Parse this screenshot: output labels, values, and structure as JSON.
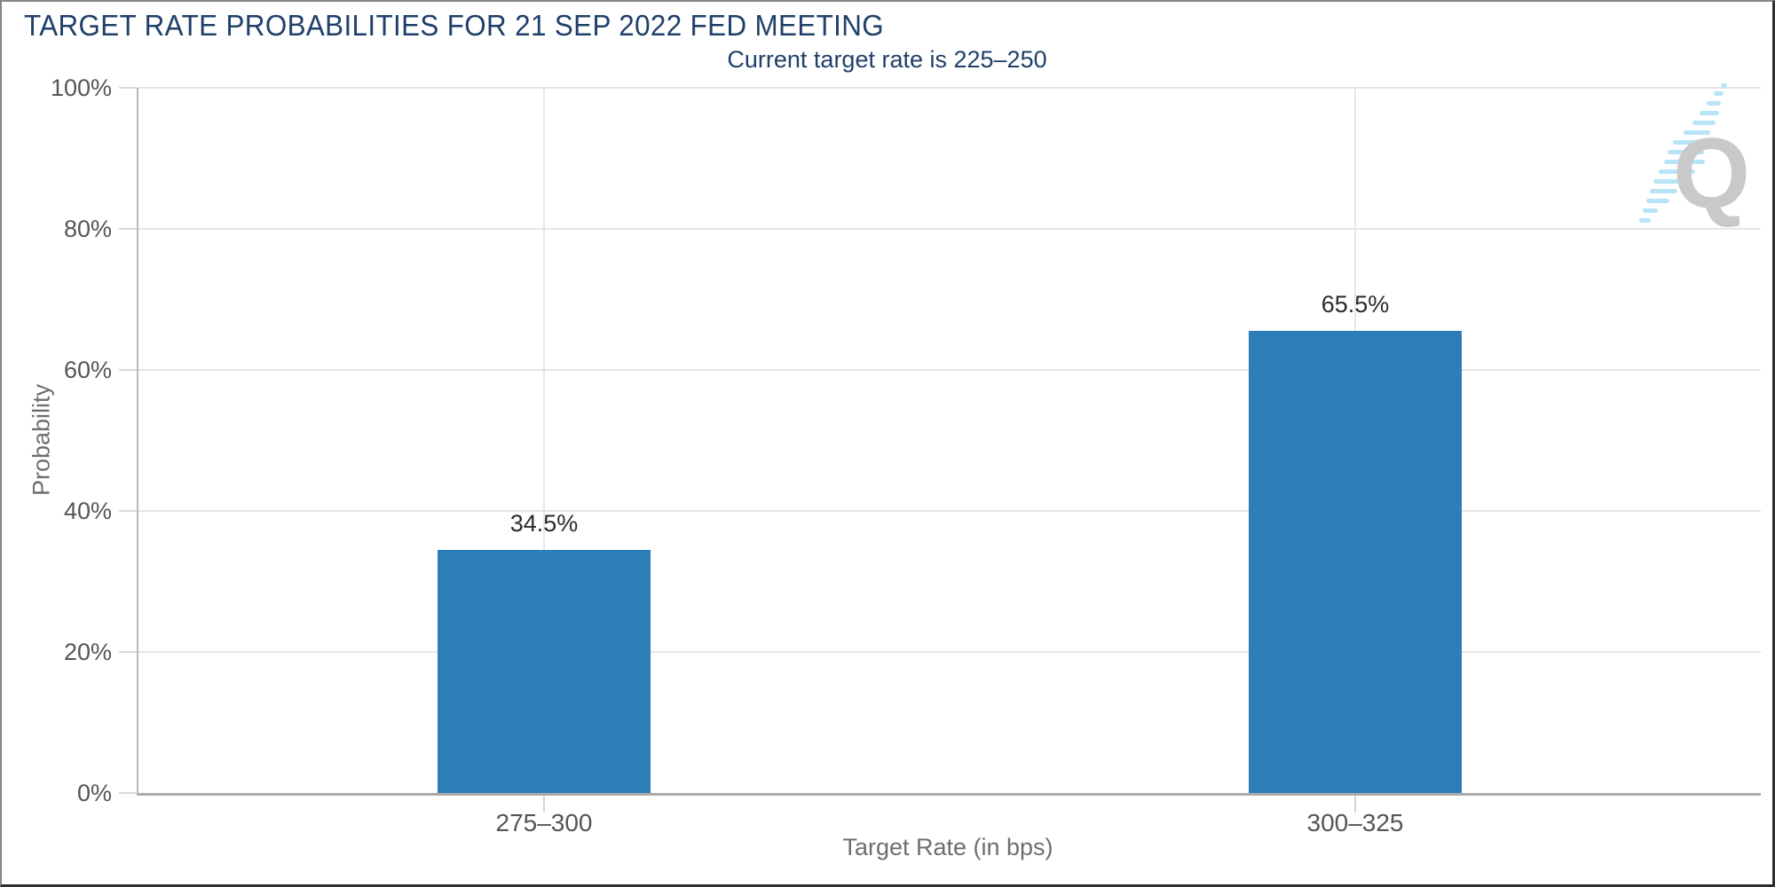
{
  "header": {
    "title": "TARGET RATE PROBABILITIES FOR 21 SEP 2022 FED MEETING",
    "subtitle": "Current target rate is 225–250"
  },
  "watermark": {
    "letter": "Q"
  },
  "chart_data": {
    "type": "bar",
    "title": "TARGET RATE PROBABILITIES FOR 21 SEP 2022 FED MEETING",
    "subtitle": "Current target rate is 225–250",
    "categories": [
      "275–300",
      "300–325"
    ],
    "values": [
      34.5,
      65.5
    ],
    "value_labels": [
      "34.5%",
      "65.5%"
    ],
    "xlabel": "Target Rate (in bps)",
    "ylabel": "Probability",
    "ylim": [
      0,
      100
    ],
    "yticks": [
      0,
      20,
      40,
      60,
      80,
      100
    ],
    "ytick_labels": [
      "0%",
      "20%",
      "40%",
      "60%",
      "80%",
      "100%"
    ],
    "bar_color": "#2d7db8",
    "grid": true,
    "legend": false,
    "colors": {
      "title_text": "#20406a",
      "axis_text": "#565656",
      "value_text": "#2b2b2b",
      "gridline": "#e5e5e5",
      "axis_line": "#a9a9a9",
      "watermark_gray": "#c9c9c9",
      "watermark_blue": "#b5e3f7"
    }
  }
}
